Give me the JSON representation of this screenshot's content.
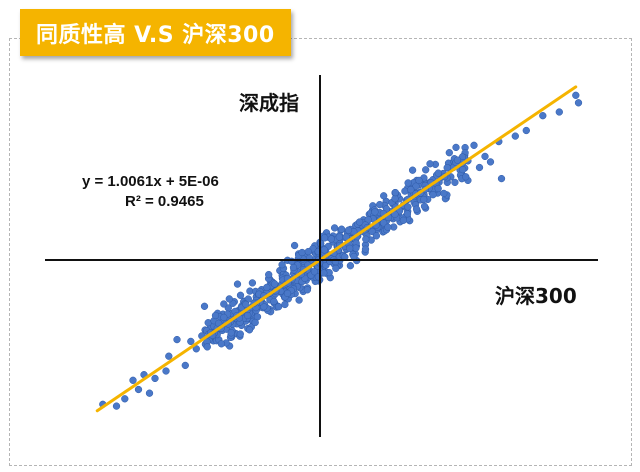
{
  "title": "同质性高 V.S 沪深300",
  "colors": {
    "banner": "#f5b400",
    "points": "#4a78c8",
    "point_edge": "#2e5aa8",
    "trendline": "#f5b400",
    "axis": "#111111"
  },
  "chart_data": {
    "type": "scatter",
    "title": "同质性高 V.S 沪深300",
    "xlabel": "沪深300",
    "ylabel": "深成指",
    "xlim": [
      -1,
      1
    ],
    "ylim": [
      -1,
      1
    ],
    "trendline": {
      "slope": 1.0061,
      "intercept": 5e-06
    },
    "equation": "y = 1.0061x + 5E-06",
    "r_squared": "R² = 0.9465",
    "grid": false,
    "outliers": [
      {
        "x": -0.79,
        "y": -0.78
      },
      {
        "x": -0.74,
        "y": -0.79
      },
      {
        "x": -0.71,
        "y": -0.75
      },
      {
        "x": -0.66,
        "y": -0.7
      },
      {
        "x": -0.62,
        "y": -0.72
      },
      {
        "x": -0.6,
        "y": -0.64
      },
      {
        "x": -0.56,
        "y": -0.6
      },
      {
        "x": -0.52,
        "y": -0.43
      },
      {
        "x": -0.49,
        "y": -0.57
      },
      {
        "x": -0.47,
        "y": -0.44
      },
      {
        "x": -0.43,
        "y": -0.41
      },
      {
        "x": -0.41,
        "y": -0.47
      },
      {
        "x": -0.38,
        "y": -0.3
      },
      {
        "x": -0.36,
        "y": -0.37
      },
      {
        "x": -0.3,
        "y": -0.13
      },
      {
        "x": -0.42,
        "y": -0.25
      },
      {
        "x": -0.33,
        "y": -0.21
      },
      {
        "x": -0.29,
        "y": -0.4
      },
      {
        "x": 0.47,
        "y": 0.58
      },
      {
        "x": 0.53,
        "y": 0.45
      },
      {
        "x": 0.56,
        "y": 0.62
      },
      {
        "x": 0.6,
        "y": 0.56
      },
      {
        "x": 0.65,
        "y": 0.64
      },
      {
        "x": 0.66,
        "y": 0.44
      },
      {
        "x": 0.71,
        "y": 0.67
      },
      {
        "x": 0.75,
        "y": 0.7
      },
      {
        "x": 0.81,
        "y": 0.78
      },
      {
        "x": 0.87,
        "y": 0.8
      },
      {
        "x": 0.93,
        "y": 0.89
      },
      {
        "x": 0.94,
        "y": 0.85
      },
      {
        "x": 0.4,
        "y": 0.52
      },
      {
        "x": 0.43,
        "y": 0.47
      },
      {
        "x": 0.36,
        "y": 0.43
      },
      {
        "x": 0.5,
        "y": 0.54
      },
      {
        "x": 0.38,
        "y": 0.29
      },
      {
        "x": 0.45,
        "y": 0.36
      },
      {
        "x": 0.62,
        "y": 0.53
      },
      {
        "x": 0.58,
        "y": 0.5
      },
      {
        "x": 0.33,
        "y": 0.38
      },
      {
        "x": -0.55,
        "y": -0.52
      },
      {
        "x": -0.64,
        "y": -0.62
      },
      {
        "x": -0.35,
        "y": -0.31
      },
      {
        "x": -0.45,
        "y": -0.48
      },
      {
        "x": -0.27,
        "y": -0.24
      },
      {
        "x": -0.68,
        "y": -0.65
      }
    ],
    "cluster": {
      "count": 620,
      "x_range": [
        -0.42,
        0.54
      ],
      "spread": 0.055,
      "seed": 7
    }
  }
}
